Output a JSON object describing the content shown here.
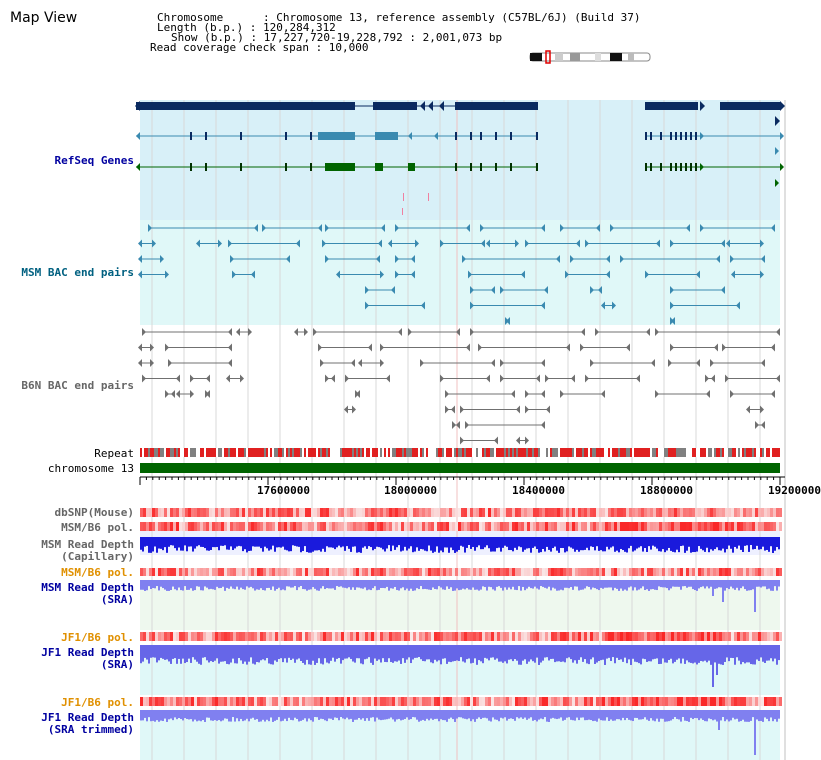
{
  "title": "Map View",
  "info": {
    "chromosome": "Chromosome      : Chromosome 13, reference assembly (C57BL/6J) (Build 37)",
    "length": "Length (b.p.) : 120,284,312",
    "show": "Show (b.p.) : 17,227,720-19,228,792 : 2,001,073 bp",
    "read_coverage": "Read coverage check span : 10,000"
  },
  "tracks": {
    "refseq": "RefSeq Genes",
    "msm_bac": "MSM BAC end pairs",
    "b6n_bac": "B6N BAC end pairs",
    "repeat": "Repeat",
    "chromosome": "chromosome 13",
    "dbsnp": "dbSNP(Mouse)",
    "msm_b6_pol_1": "MSM/B6 pol.",
    "msm_read_depth_cap_1": "MSM Read Depth",
    "msm_read_depth_cap_2": "(Capillary)",
    "msm_b6_pol_2": "MSM/B6 pol.",
    "msm_read_depth_sra_1": "MSM Read Depth",
    "msm_read_depth_sra_2": "(SRA)",
    "jf1_b6_pol_1": "JF1/B6 pol.",
    "jf1_read_depth_sra_1": "JF1 Read Depth",
    "jf1_read_depth_sra_2": "(SRA)",
    "jf1_b6_pol_2": "JF1/B6 pol.",
    "jf1_read_depth_trim_1": "JF1 Read Depth",
    "jf1_read_depth_trim_2": "(SRA trimmed)"
  },
  "axis": {
    "ticks": [
      "17600000",
      "18000000",
      "18400000",
      "18800000",
      "19200000"
    ]
  },
  "colors": {
    "refseq_bg": "#d8f0f8",
    "msm_bg": "#e0f8f8",
    "gene_navy": "#0a2a60",
    "gene_teal": "#3a8ab0",
    "gene_green": "#006400",
    "chrom_green": "#006400",
    "depth_blue": "#1a1adc",
    "label_blue": "#0000a0",
    "label_orange": "#e09000",
    "label_teal": "#006080",
    "label_gray": "#666666"
  }
}
